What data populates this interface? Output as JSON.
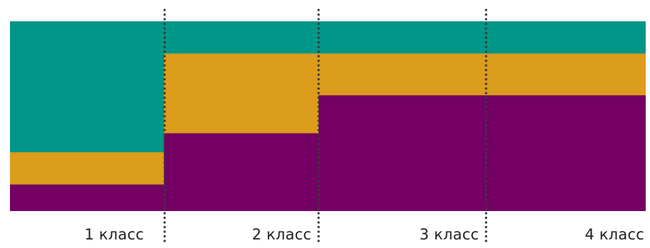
{
  "chart_data": {
    "type": "area",
    "step": true,
    "stacked": true,
    "normalized": true,
    "categories": [
      "1 класс",
      "2 класс",
      "3 класс",
      "4 класс"
    ],
    "series": [
      {
        "color": "#730062",
        "values": [
          0.14,
          0.41,
          0.61,
          0.61
        ]
      },
      {
        "color": "#DC9C1C",
        "values": [
          0.31,
          0.83,
          0.83,
          0.83
        ]
      },
      {
        "color": "#009688",
        "values": [
          1.0,
          1.0,
          1.0,
          1.0
        ]
      }
    ],
    "first_segment": {
      "purple": 0.14,
      "orange": 0.31,
      "teal": 1.0
    },
    "opening_segment_values": [
      0.14,
      0.31,
      1.0
    ],
    "ylim": [
      0,
      1
    ],
    "grid": false,
    "legend": "none",
    "divider_style": "dotted"
  }
}
